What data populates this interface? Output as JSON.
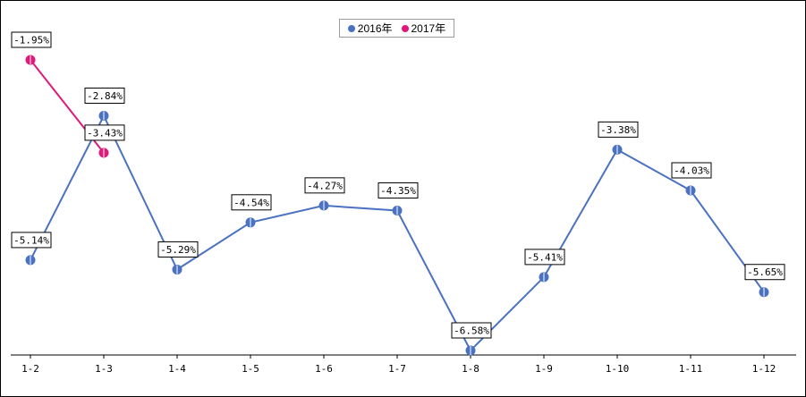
{
  "chart_data": {
    "type": "line",
    "categories": [
      "1-2",
      "1-3",
      "1-4",
      "1-5",
      "1-6",
      "1-7",
      "1-8",
      "1-9",
      "1-10",
      "1-11",
      "1-12"
    ],
    "series": [
      {
        "name": "2016年",
        "color": "#4a72c0",
        "values": [
          -5.14,
          -2.84,
          -5.29,
          -4.54,
          -4.27,
          -4.35,
          -6.58,
          -5.41,
          -3.38,
          -4.03,
          -5.65
        ],
        "labels": [
          "-5.14%",
          "-2.84%",
          "-5.29%",
          "-4.54%",
          "-4.27%",
          "-4.35%",
          "-6.58%",
          "-5.41%",
          "-3.38%",
          "-4.03%",
          "-5.65%"
        ]
      },
      {
        "name": "2017年",
        "color": "#e0197a",
        "values": [
          -1.95,
          -3.43,
          null,
          null,
          null,
          null,
          null,
          null,
          null,
          null,
          null
        ],
        "labels": [
          "-1.95%",
          "-3.43%",
          "",
          "",
          "",
          "",
          "",
          "",
          "",
          "",
          ""
        ]
      }
    ],
    "ylim": [
      -6.58,
      -1.95
    ],
    "grid": false,
    "legend_position": "top-center"
  }
}
